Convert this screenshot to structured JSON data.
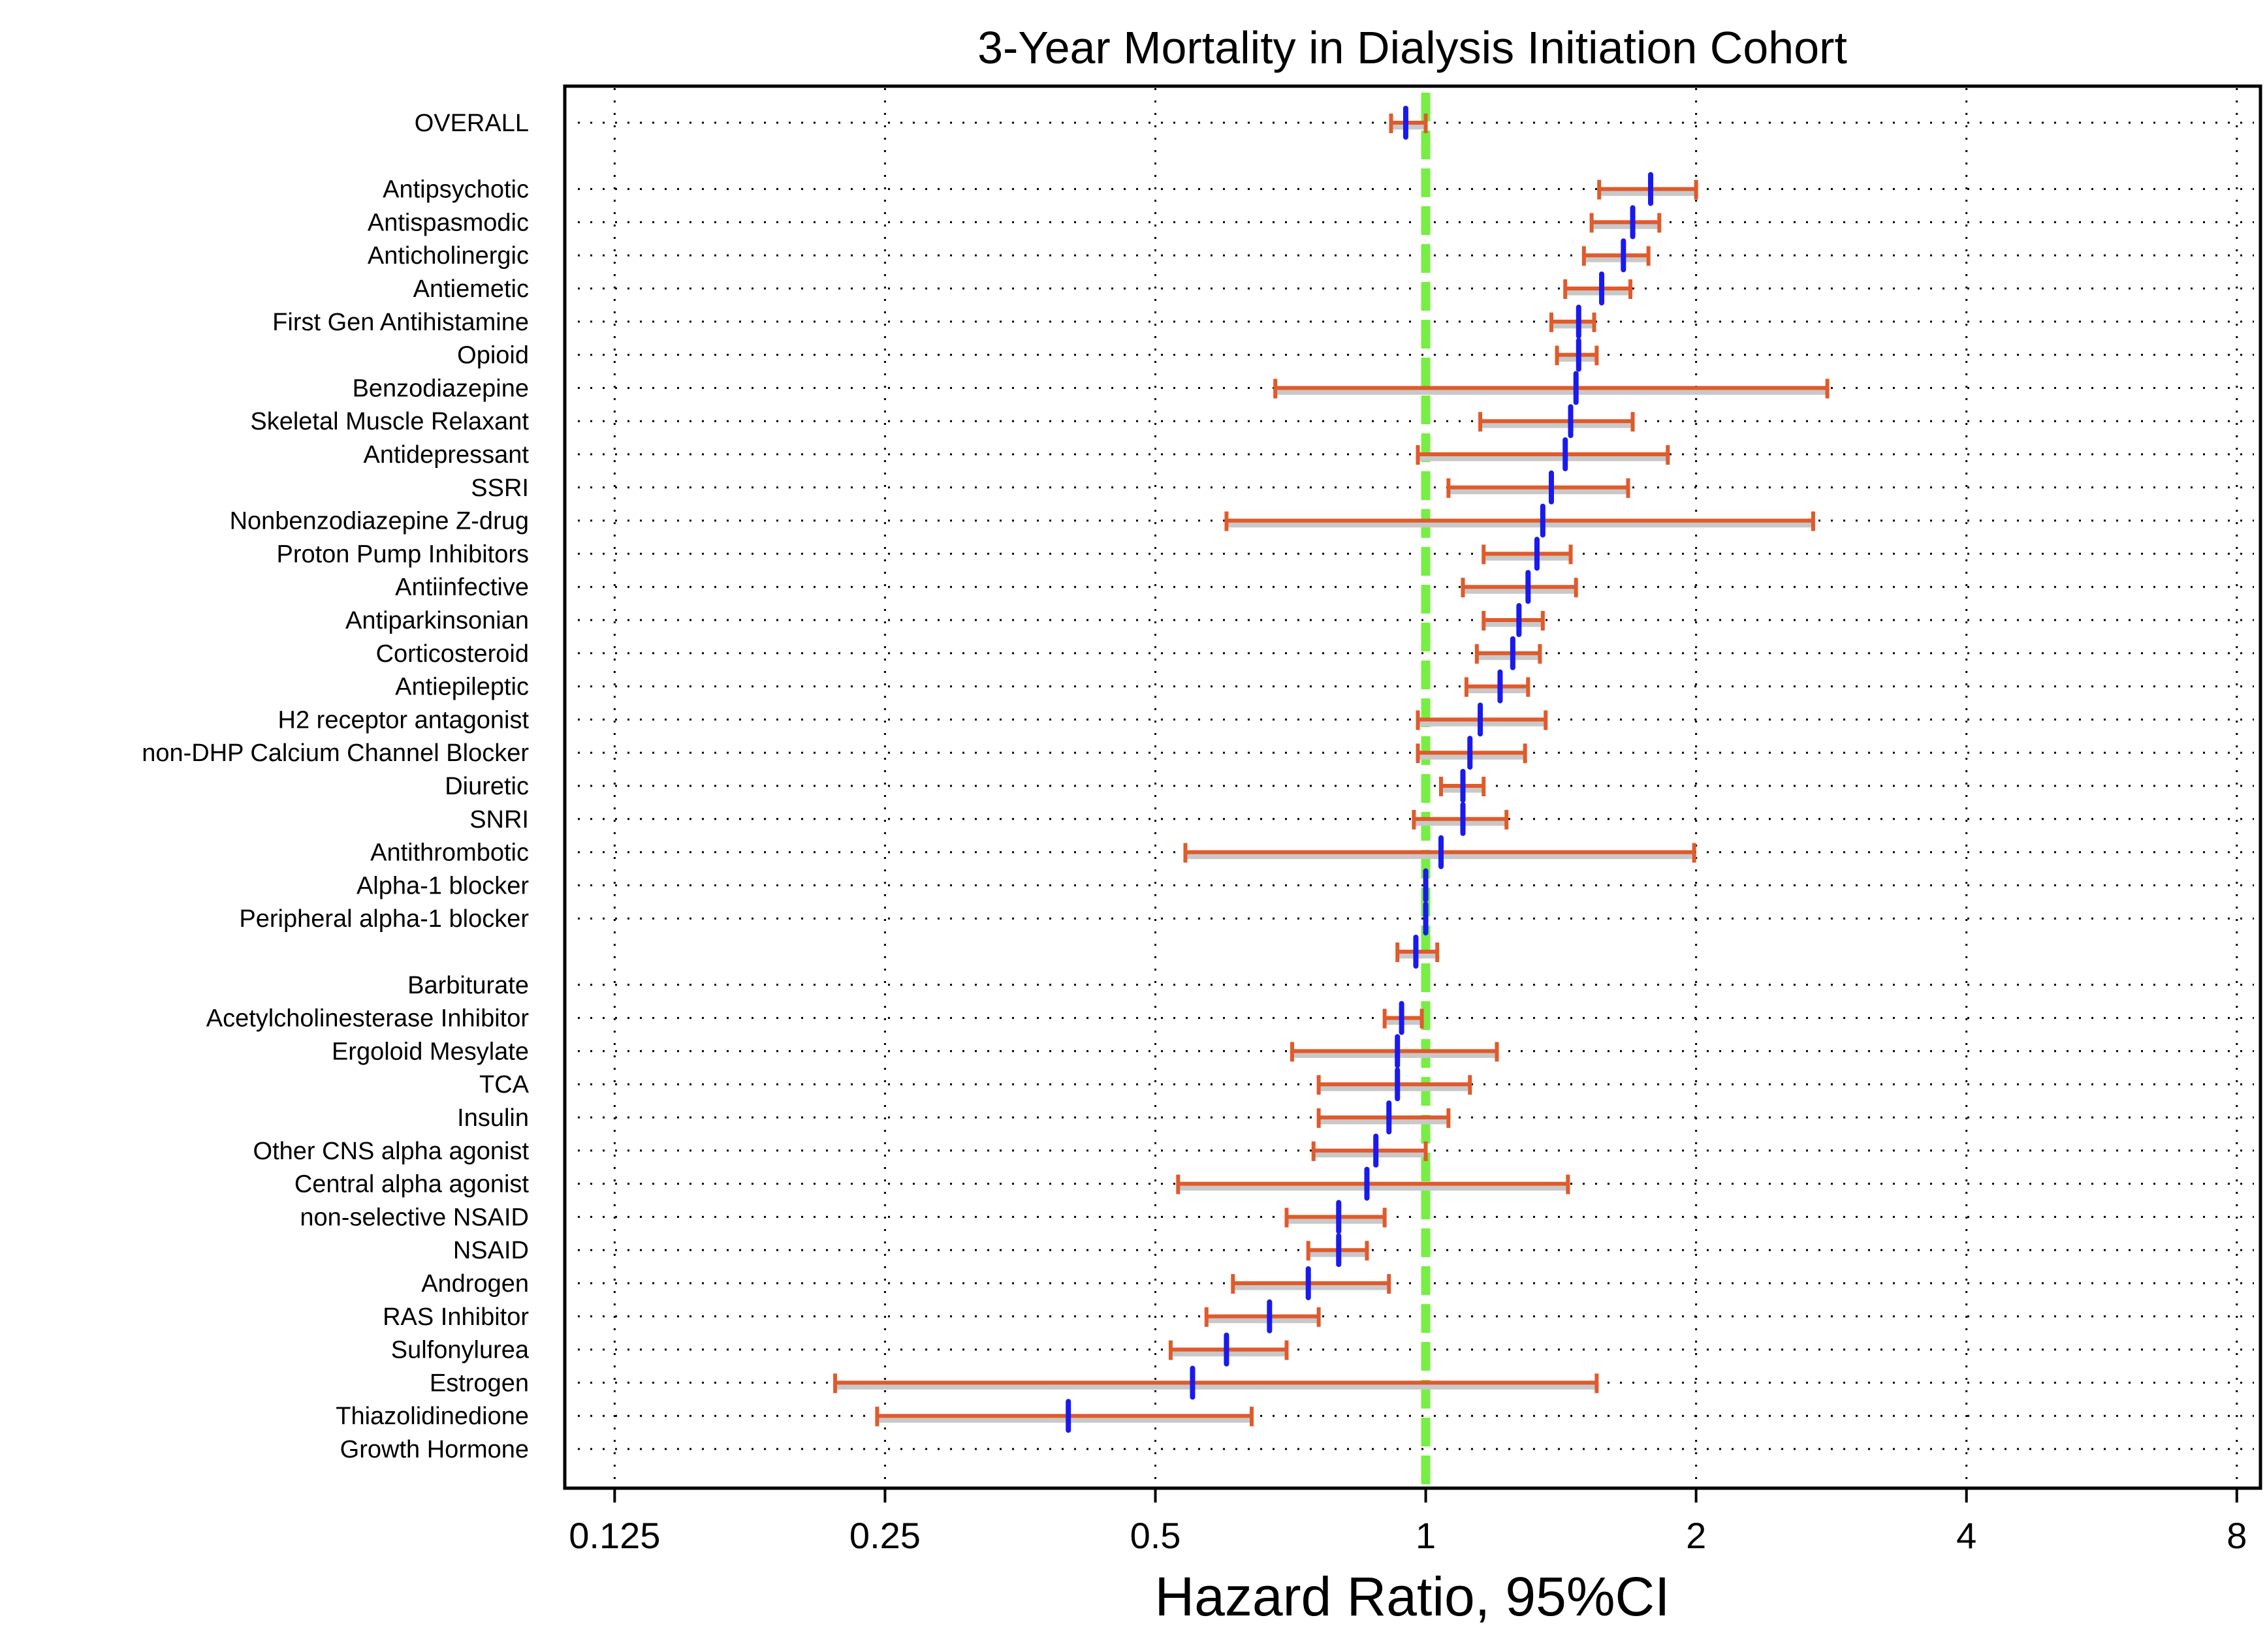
{
  "chart_data": {
    "type": "forest",
    "title": "3-Year Mortality in Dialysis Initiation Cohort",
    "xlabel": "Hazard Ratio, 95%CI",
    "ylabel": "",
    "x_scale": "log2",
    "xlim": [
      0.11,
      8.5
    ],
    "x_ticks": [
      {
        "value": 0.125,
        "label": "0.125"
      },
      {
        "value": 0.25,
        "label": "0.25"
      },
      {
        "value": 0.5,
        "label": "0.5"
      },
      {
        "value": 1,
        "label": "1"
      },
      {
        "value": 2,
        "label": "2"
      },
      {
        "value": 4,
        "label": "4"
      },
      {
        "value": 8,
        "label": "8"
      }
    ],
    "reference_line": {
      "value": 1,
      "color": "#77ee44",
      "style": "dashed"
    },
    "grid": "dotted",
    "colors": {
      "ci": "#e05a2b",
      "ci_shadow": "#c8c8c8",
      "point": "#1a1aee",
      "text": "#000000"
    },
    "rows": [
      {
        "label": "OVERALL",
        "hr": 0.95,
        "lo": 0.915,
        "hi": 1.0
      },
      {
        "label": "",
        "hr": null,
        "lo": null,
        "hi": null
      },
      {
        "label": "Antipsychotic",
        "hr": 1.78,
        "lo": 1.56,
        "hi": 2.0
      },
      {
        "label": "Antispasmodic",
        "hr": 1.7,
        "lo": 1.53,
        "hi": 1.82
      },
      {
        "label": "Anticholinergic",
        "hr": 1.66,
        "lo": 1.5,
        "hi": 1.77
      },
      {
        "label": "Antiemetic",
        "hr": 1.57,
        "lo": 1.43,
        "hi": 1.69
      },
      {
        "label": "First Gen Antihistamine",
        "hr": 1.48,
        "lo": 1.38,
        "hi": 1.54
      },
      {
        "label": "Opioid",
        "hr": 1.48,
        "lo": 1.4,
        "hi": 1.55
      },
      {
        "label": "Benzodiazepine",
        "hr": 1.47,
        "lo": 0.68,
        "hi": 2.8
      },
      {
        "label": "Skeletal Muscle Relaxant",
        "hr": 1.45,
        "lo": 1.15,
        "hi": 1.7
      },
      {
        "label": "Antidepressant",
        "hr": 1.43,
        "lo": 0.98,
        "hi": 1.86
      },
      {
        "label": "SSRI",
        "hr": 1.38,
        "lo": 1.06,
        "hi": 1.68
      },
      {
        "label": "Nonbenzodiazepine Z-drug",
        "hr": 1.35,
        "lo": 0.6,
        "hi": 2.7
      },
      {
        "label": "Proton Pump Inhibitors",
        "hr": 1.33,
        "lo": 1.16,
        "hi": 1.45
      },
      {
        "label": "Antiinfective",
        "hr": 1.3,
        "lo": 1.1,
        "hi": 1.47
      },
      {
        "label": "Antiparkinsonian",
        "hr": 1.27,
        "lo": 1.16,
        "hi": 1.35
      },
      {
        "label": "Corticosteroid",
        "hr": 1.25,
        "lo": 1.14,
        "hi": 1.34
      },
      {
        "label": "Antiepileptic",
        "hr": 1.21,
        "lo": 1.11,
        "hi": 1.3
      },
      {
        "label": "H2 receptor antagonist",
        "hr": 1.15,
        "lo": 0.98,
        "hi": 1.36
      },
      {
        "label": "non-DHP Calcium Channel Blocker",
        "hr": 1.12,
        "lo": 0.98,
        "hi": 1.29
      },
      {
        "label": "Diuretic",
        "hr": 1.1,
        "lo": 1.04,
        "hi": 1.16
      },
      {
        "label": "SNRI",
        "hr": 1.1,
        "lo": 0.97,
        "hi": 1.23
      },
      {
        "label": "Antithrombotic",
        "hr": 1.04,
        "lo": 0.54,
        "hi": 1.99
      },
      {
        "label": "Alpha-1 blocker",
        "hr": 1.0,
        "lo": 1.0,
        "hi": 1.0
      },
      {
        "label": "Peripheral alpha-1 blocker",
        "hr": 1.0,
        "lo": 1.0,
        "hi": 1.0
      },
      {
        "label": "",
        "hr": 0.975,
        "lo": 0.93,
        "hi": 1.03
      },
      {
        "label": "Barbiturate",
        "hr": null,
        "lo": null,
        "hi": null
      },
      {
        "label": "Acetylcholinesterase Inhibitor",
        "hr": 0.94,
        "lo": 0.9,
        "hi": 0.99
      },
      {
        "label": "Ergoloid Mesylate",
        "hr": 0.93,
        "lo": 0.71,
        "hi": 1.2
      },
      {
        "label": "TCA",
        "hr": 0.93,
        "lo": 0.76,
        "hi": 1.12
      },
      {
        "label": "Insulin",
        "hr": 0.91,
        "lo": 0.76,
        "hi": 1.06
      },
      {
        "label": "Other CNS alpha agonist",
        "hr": 0.88,
        "lo": 0.75,
        "hi": 1.0
      },
      {
        "label": "Central alpha agonist",
        "hr": 0.86,
        "lo": 0.53,
        "hi": 1.44
      },
      {
        "label": "non-selective NSAID",
        "hr": 0.8,
        "lo": 0.7,
        "hi": 0.9
      },
      {
        "label": "NSAID",
        "hr": 0.8,
        "lo": 0.74,
        "hi": 0.86
      },
      {
        "label": "Androgen",
        "hr": 0.74,
        "lo": 0.61,
        "hi": 0.91
      },
      {
        "label": "RAS Inhibitor",
        "hr": 0.67,
        "lo": 0.57,
        "hi": 0.76
      },
      {
        "label": "Sulfonylurea",
        "hr": 0.6,
        "lo": 0.52,
        "hi": 0.7
      },
      {
        "label": "Estrogen",
        "hr": 0.55,
        "lo": 0.22,
        "hi": 1.55
      },
      {
        "label": "Thiazolidinedione",
        "hr": 0.4,
        "lo": 0.245,
        "hi": 0.64
      },
      {
        "label": "Growth Hormone",
        "hr": null,
        "lo": null,
        "hi": null
      }
    ]
  }
}
